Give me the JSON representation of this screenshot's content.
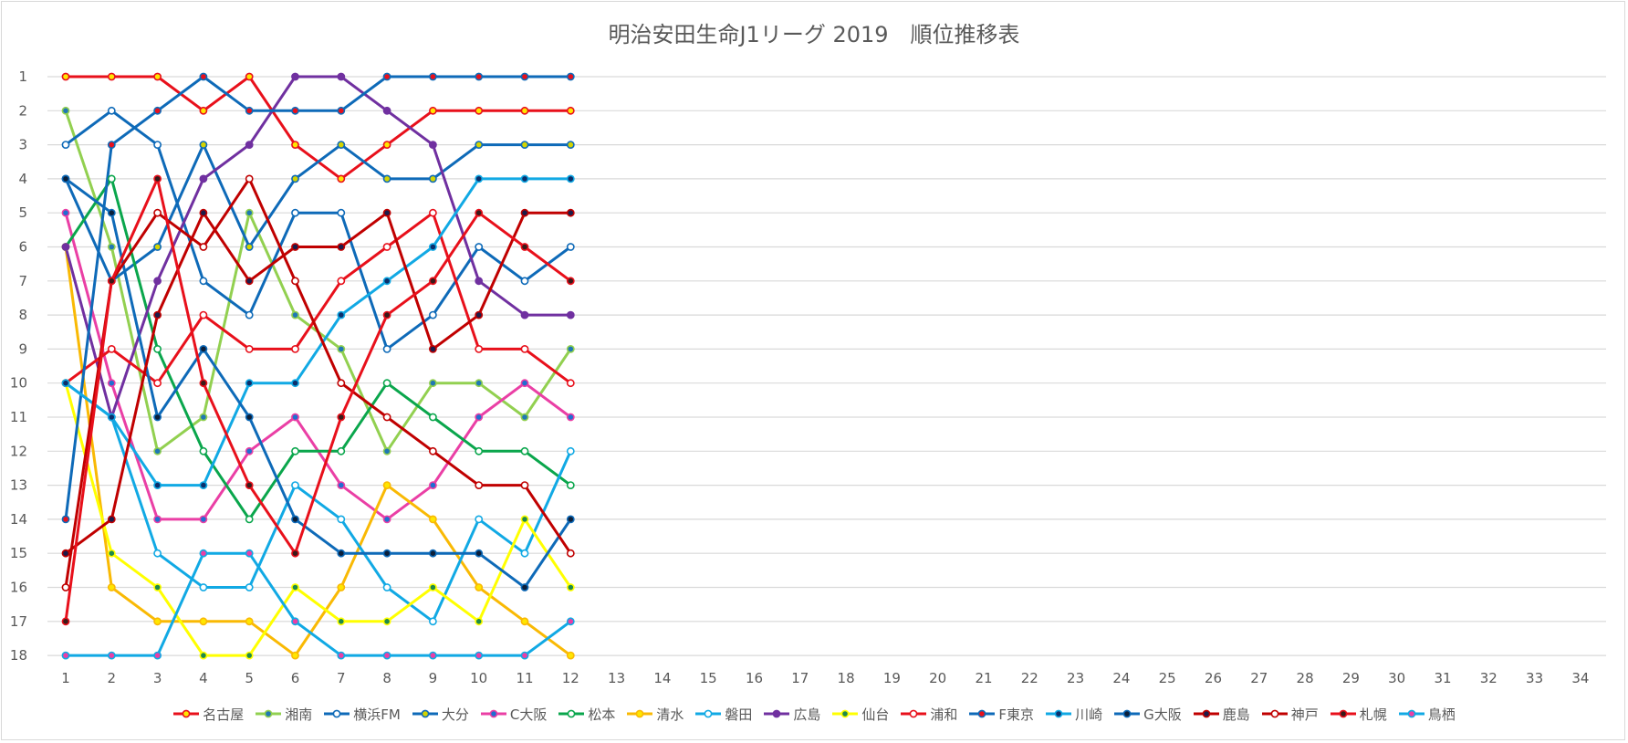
{
  "chart_data": {
    "type": "line",
    "title": "明治安田生命J1リーグ 2019　順位推移表",
    "xlabel": "",
    "ylabel": "",
    "x_categories": [
      1,
      2,
      3,
      4,
      5,
      6,
      7,
      8,
      9,
      10,
      11,
      12,
      13,
      14,
      15,
      16,
      17,
      18,
      19,
      20,
      21,
      22,
      23,
      24,
      25,
      26,
      27,
      28,
      29,
      30,
      31,
      32,
      33,
      34
    ],
    "ylim": [
      1,
      18
    ],
    "y_reversed": true,
    "y_ticks": [
      1,
      2,
      3,
      4,
      5,
      6,
      7,
      8,
      9,
      10,
      11,
      12,
      13,
      14,
      15,
      16,
      17,
      18
    ],
    "grid": "horizontal",
    "legend_position": "bottom",
    "series": [
      {
        "name": "名古屋",
        "line_color": "#e8101b",
        "marker_fill": "#ffe600",
        "values": [
          1,
          1,
          1,
          2,
          1,
          3,
          4,
          3,
          2,
          2,
          2,
          2
        ]
      },
      {
        "name": "湘南",
        "line_color": "#92d050",
        "marker_fill": "#1f78b4",
        "values": [
          2,
          6,
          12,
          11,
          5,
          8,
          9,
          12,
          10,
          10,
          11,
          9
        ]
      },
      {
        "name": "横浜FM",
        "line_color": "#0e6ab8",
        "marker_fill": "#ffffff",
        "values": [
          3,
          2,
          3,
          7,
          8,
          5,
          5,
          9,
          8,
          6,
          7,
          6
        ]
      },
      {
        "name": "大分",
        "line_color": "#0e6ab8",
        "marker_fill": "#d4d400",
        "values": [
          4,
          7,
          6,
          3,
          6,
          4,
          3,
          4,
          4,
          3,
          3,
          3
        ]
      },
      {
        "name": "C大阪",
        "line_color": "#ea3fa5",
        "marker_fill": "#1f6fd1",
        "values": [
          5,
          10,
          14,
          14,
          12,
          11,
          13,
          14,
          13,
          11,
          10,
          11
        ]
      },
      {
        "name": "松本",
        "line_color": "#0aa64c",
        "marker_fill": "#ffffff",
        "values": [
          6,
          4,
          9,
          12,
          14,
          12,
          12,
          10,
          11,
          12,
          12,
          13
        ]
      },
      {
        "name": "清水",
        "line_color": "#f9b904",
        "marker_fill": "#ffe600",
        "values": [
          6,
          16,
          17,
          17,
          17,
          18,
          16,
          13,
          14,
          16,
          17,
          18
        ]
      },
      {
        "name": "磐田",
        "line_color": "#11a9e4",
        "marker_fill": "#ffffff",
        "values": [
          10,
          11,
          15,
          16,
          16,
          13,
          14,
          16,
          17,
          14,
          15,
          12
        ]
      },
      {
        "name": "広島",
        "line_color": "#7030a0",
        "marker_fill": "#7030a0",
        "values": [
          6,
          11,
          7,
          4,
          3,
          1,
          1,
          2,
          3,
          7,
          8,
          8
        ]
      },
      {
        "name": "仙台",
        "line_color": "#ffff00",
        "marker_fill": "#1e8a4a",
        "values": [
          10,
          15,
          16,
          18,
          18,
          16,
          17,
          17,
          16,
          17,
          14,
          16
        ]
      },
      {
        "name": "浦和",
        "line_color": "#e8101b",
        "marker_fill": "#ffffff",
        "values": [
          10,
          9,
          10,
          8,
          9,
          9,
          7,
          6,
          5,
          9,
          9,
          10
        ]
      },
      {
        "name": "F東京",
        "line_color": "#0e6ab8",
        "marker_fill": "#e8101b",
        "values": [
          14,
          3,
          2,
          1,
          2,
          2,
          2,
          1,
          1,
          1,
          1,
          1
        ]
      },
      {
        "name": "川崎",
        "line_color": "#11a9e4",
        "marker_fill": "#0b2f6b",
        "values": [
          10,
          11,
          13,
          13,
          10,
          10,
          8,
          7,
          6,
          4,
          4,
          4
        ]
      },
      {
        "name": "G大阪",
        "line_color": "#0e6ab8",
        "marker_fill": "#0b1f3a",
        "values": [
          4,
          5,
          11,
          9,
          11,
          14,
          15,
          15,
          15,
          15,
          16,
          14
        ]
      },
      {
        "name": "鹿島",
        "line_color": "#c00000",
        "marker_fill": "#1c1c4a",
        "values": [
          15,
          14,
          8,
          5,
          7,
          6,
          6,
          5,
          9,
          8,
          5,
          5
        ]
      },
      {
        "name": "神戸",
        "line_color": "#c00000",
        "marker_fill": "#ffffff",
        "values": [
          16,
          7,
          5,
          6,
          4,
          7,
          10,
          11,
          12,
          13,
          13,
          15
        ]
      },
      {
        "name": "札幌",
        "line_color": "#e8101b",
        "marker_fill": "#3a1a1a",
        "values": [
          17,
          7,
          4,
          10,
          13,
          15,
          11,
          8,
          7,
          5,
          6,
          7
        ]
      },
      {
        "name": "鳥栖",
        "line_color": "#11a9e4",
        "marker_fill": "#ea3fa5",
        "values": [
          18,
          18,
          18,
          15,
          15,
          17,
          18,
          18,
          18,
          18,
          18,
          17
        ]
      }
    ]
  }
}
